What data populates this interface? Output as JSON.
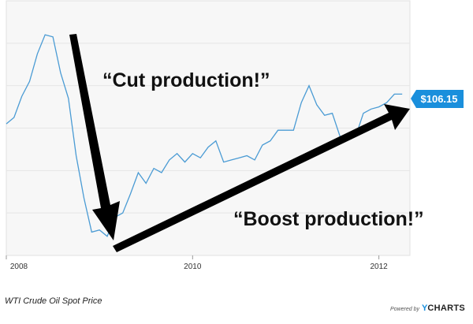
{
  "chart_data": {
    "type": "line",
    "title": "WTI Crude Oil Spot Price",
    "x_ticks": [
      "2008",
      "2010",
      "2012"
    ],
    "xlim": [
      "2008-01",
      "2012-05"
    ],
    "ylim": [
      30,
      150
    ],
    "grid": true,
    "series": [
      {
        "color": "#4a9bd4",
        "x": [
          "2008-01",
          "2008-02",
          "2008-03",
          "2008-04",
          "2008-05",
          "2008-06",
          "2008-07",
          "2008-08",
          "2008-09",
          "2008-10",
          "2008-11",
          "2008-12",
          "2009-01",
          "2009-02",
          "2009-03",
          "2009-04",
          "2009-05",
          "2009-06",
          "2009-07",
          "2009-08",
          "2009-09",
          "2009-10",
          "2009-11",
          "2009-12",
          "2010-01",
          "2010-02",
          "2010-03",
          "2010-04",
          "2010-05",
          "2010-06",
          "2010-07",
          "2010-08",
          "2010-09",
          "2010-10",
          "2010-11",
          "2010-12",
          "2011-01",
          "2011-02",
          "2011-03",
          "2011-04",
          "2011-05",
          "2011-06",
          "2011-07",
          "2011-08",
          "2011-09",
          "2011-10",
          "2011-11",
          "2011-12",
          "2012-01",
          "2012-02",
          "2012-03",
          "2012-04"
        ],
        "values": [
          92,
          95,
          105,
          112,
          125,
          134,
          133,
          116,
          104,
          77,
          57,
          41,
          42,
          39,
          48,
          50,
          59,
          69,
          64,
          71,
          69,
          75,
          78,
          74,
          78,
          76,
          81,
          84,
          74,
          75,
          76,
          77,
          75,
          82,
          84,
          89,
          89,
          89,
          102,
          110,
          101,
          96,
          97,
          86,
          85,
          86,
          97,
          99,
          100,
          102,
          106,
          106
        ]
      }
    ],
    "annotations": [
      {
        "text": "“Cut production!”"
      },
      {
        "text": "“Boost production!”"
      }
    ],
    "last_value_label": "$106.15",
    "last_value_color": "#1a8fdc"
  },
  "footer": {
    "caption": "WTI Crude Oil Spot Price",
    "powered_by": "Powered by",
    "brand_y": "Y",
    "brand_rest": "CHARTS"
  }
}
